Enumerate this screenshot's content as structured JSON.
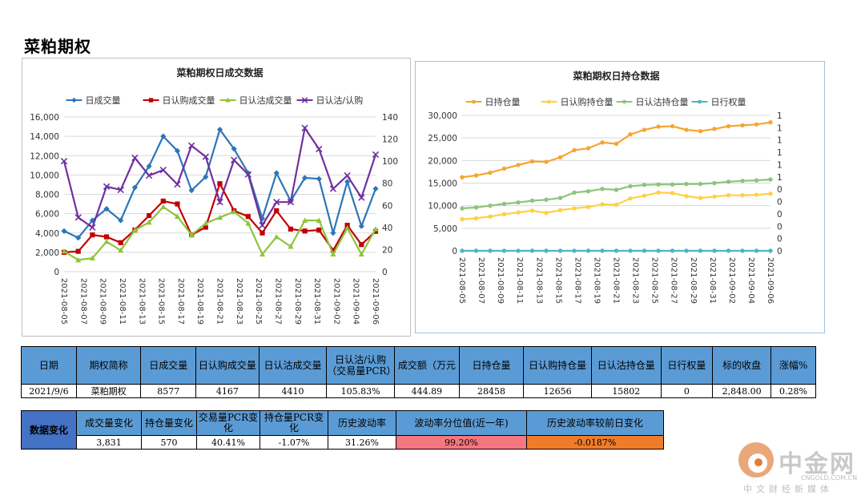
{
  "page_title": "菜粕期权",
  "chart_data": [
    {
      "type": "line",
      "title": "菜粕期权日成交数据",
      "x": [
        "2021-08-05",
        "2021-08-06",
        "2021-08-09",
        "2021-08-10",
        "2021-08-11",
        "2021-08-12",
        "2021-08-13",
        "2021-08-16",
        "2021-08-17",
        "2021-08-18",
        "2021-08-19",
        "2021-08-20",
        "2021-08-23",
        "2021-08-24",
        "2021-08-25",
        "2021-08-26",
        "2021-08-27",
        "2021-08-30",
        "2021-08-31",
        "2021-09-01",
        "2021-09-02",
        "2021-09-03",
        "2021-09-06"
      ],
      "x_tick_labels": [
        "2021-08-05",
        "2021-08-07",
        "2021-08-09",
        "2021-08-11",
        "2021-08-13",
        "2021-08-15",
        "2021-08-17",
        "2021-08-19",
        "2021-08-21",
        "2021-08-23",
        "2021-08-25",
        "2021-08-27",
        "2021-08-29",
        "2021-08-31",
        "2021-09-02",
        "2021-09-04",
        "2021-09-06"
      ],
      "ylim": [
        0,
        16000
      ],
      "y_ticks": [
        "0",
        "2,000",
        "4,000",
        "6,000",
        "8,000",
        "10,000",
        "12,000",
        "14,000",
        "16,000"
      ],
      "y2lim": [
        0,
        140
      ],
      "y2_ticks": [
        "0",
        "20",
        "40",
        "60",
        "80",
        "100",
        "120",
        "140"
      ],
      "legend_position": "top",
      "series": [
        {
          "name": "日成交量",
          "color": "#2e75b6",
          "marker": "diamond",
          "axis": "left",
          "values": [
            4200,
            3500,
            5300,
            6500,
            5300,
            8700,
            10900,
            14000,
            12500,
            8400,
            9800,
            14700,
            12700,
            10200,
            5500,
            10200,
            7300,
            9700,
            9600,
            4000,
            9300,
            4700,
            8577
          ]
        },
        {
          "name": "日认购成交量",
          "color": "#c00000",
          "marker": "square",
          "axis": "left",
          "values": [
            2000,
            2100,
            3800,
            3600,
            3000,
            4300,
            5800,
            7300,
            7000,
            3800,
            4600,
            9100,
            6300,
            5700,
            4000,
            6300,
            4400,
            4200,
            4300,
            2200,
            4800,
            2800,
            4167
          ]
        },
        {
          "name": "日认沽成交量",
          "color": "#8fc43c",
          "marker": "triangle",
          "axis": "left",
          "values": [
            2100,
            1200,
            1400,
            3100,
            2200,
            4300,
            5100,
            6700,
            5700,
            3800,
            5000,
            5600,
            6200,
            5000,
            1800,
            3600,
            2600,
            5300,
            5300,
            1800,
            4500,
            1800,
            4410
          ]
        },
        {
          "name": "日认沽/认购",
          "color": "#7030a0",
          "marker": "x",
          "axis": "right",
          "values": [
            100,
            49,
            40,
            77,
            74,
            103,
            87,
            92,
            79,
            114,
            104,
            63,
            101,
            88,
            42,
            63,
            63,
            130,
            111,
            75,
            87,
            67,
            106
          ]
        }
      ]
    },
    {
      "type": "line",
      "title": "菜粕期权日持仓数据",
      "x": [
        "2021-08-05",
        "2021-08-06",
        "2021-08-09",
        "2021-08-10",
        "2021-08-11",
        "2021-08-12",
        "2021-08-13",
        "2021-08-16",
        "2021-08-17",
        "2021-08-18",
        "2021-08-19",
        "2021-08-20",
        "2021-08-23",
        "2021-08-24",
        "2021-08-25",
        "2021-08-26",
        "2021-08-27",
        "2021-08-30",
        "2021-08-31",
        "2021-09-01",
        "2021-09-02",
        "2021-09-03",
        "2021-09-06"
      ],
      "x_tick_labels": [
        "2021-08-05",
        "2021-08-07",
        "2021-08-09",
        "2021-08-11",
        "2021-08-13",
        "2021-08-15",
        "2021-08-17",
        "2021-08-19",
        "2021-08-21",
        "2021-08-23",
        "2021-08-25",
        "2021-08-27",
        "2021-08-29",
        "2021-08-31",
        "2021-09-02",
        "2021-09-04",
        "2021-09-06"
      ],
      "ylim": [
        0,
        30000
      ],
      "y_ticks": [
        "0",
        "5,000",
        "10,000",
        "15,000",
        "20,000",
        "25,000",
        "30,000"
      ],
      "y2_ticks": [
        "0",
        "0",
        "0",
        "0",
        "0",
        "0",
        "1",
        "1",
        "1",
        "1",
        "1",
        "1"
      ],
      "legend_position": "top",
      "series": [
        {
          "name": "日持仓量",
          "color": "#f5a631",
          "marker": "circle",
          "axis": "left",
          "values": [
            16300,
            16700,
            17300,
            18200,
            19000,
            19800,
            19700,
            20700,
            22300,
            22700,
            24000,
            23700,
            25800,
            26800,
            27500,
            27600,
            26800,
            26500,
            27000,
            27600,
            27800,
            28000,
            28458
          ]
        },
        {
          "name": "日认购持仓量",
          "color": "#ffd044",
          "marker": "circle",
          "axis": "left",
          "values": [
            7000,
            7200,
            7600,
            8100,
            8500,
            8900,
            8400,
            9000,
            9400,
            9700,
            10300,
            10200,
            11600,
            12200,
            12900,
            12800,
            12100,
            11700,
            12000,
            12300,
            12300,
            12400,
            12656
          ]
        },
        {
          "name": "日认沽持仓量",
          "color": "#8dc47a",
          "marker": "circle",
          "axis": "left",
          "values": [
            9400,
            9600,
            10000,
            10400,
            10700,
            11100,
            11300,
            11700,
            12900,
            13200,
            13700,
            13500,
            14300,
            14600,
            14700,
            14700,
            14800,
            14800,
            15000,
            15300,
            15500,
            15600,
            15802
          ]
        },
        {
          "name": "日行权量",
          "color": "#4cb7c0",
          "marker": "circle",
          "axis": "left",
          "values": [
            0,
            0,
            0,
            0,
            0,
            0,
            0,
            0,
            0,
            0,
            0,
            0,
            0,
            0,
            0,
            0,
            0,
            0,
            0,
            0,
            0,
            0,
            0
          ]
        }
      ]
    }
  ],
  "table1": {
    "headers": [
      "日期",
      "期权简称",
      "日成交量",
      "日认购成交量",
      "日认沽成交量",
      "日认沽/认购（交易量PCR）",
      "成交额（万元",
      "日持仓量",
      "日认购持仓量",
      "日认沽持仓量",
      "日行权量",
      "标的收盘",
      "涨幅%"
    ],
    "values": [
      "2021/9/6",
      "菜粕期权",
      "8577",
      "4167",
      "4410",
      "105.83%",
      "444.89",
      "28458",
      "12656",
      "15802",
      "0",
      "2,848.00",
      "0.28%"
    ]
  },
  "table2": {
    "label": "数据变化",
    "headers": [
      "成交量变化",
      "持仓量变化",
      "交易量PCR变化",
      "持仓量PCR变化",
      "历史波动率",
      "波动率分位值(近一年)",
      "历史波动率较前日变化"
    ],
    "values": [
      "3,831",
      "570",
      "40.41%",
      "-1.07%",
      "31.26%",
      "99.20%",
      "-0.0187%"
    ]
  },
  "logo": {
    "name": "中金网",
    "url": "CNGOLD.COM.CN",
    "slogan": "中文财经新媒体"
  },
  "colors": {
    "header_blue": "#5b9bd5",
    "label_blue": "#4472c4",
    "percentile_red": "#f4777f",
    "change_orange": "#f07c2a"
  }
}
